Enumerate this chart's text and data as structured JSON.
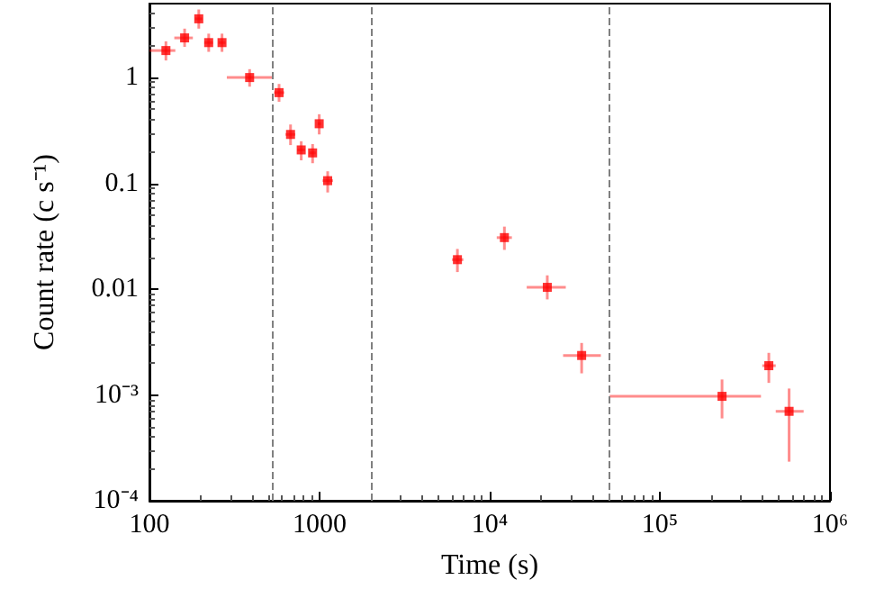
{
  "chart_data": {
    "type": "scatter",
    "xlabel": "Time (s)",
    "ylabel": "Count rate (c s⁻¹)",
    "log": "xy",
    "grid": false,
    "marker": "square",
    "xlim": [
      100,
      1000000
    ],
    "ylim": [
      0.0001,
      5
    ],
    "xticks": [
      100,
      1000,
      {
        "value": 10000,
        "label": "10⁴"
      },
      {
        "value": 100000,
        "label": "10⁵"
      },
      {
        "value": 1000000,
        "label": "10⁶"
      }
    ],
    "yticks": [
      {
        "value": 0.0001,
        "label": "10⁻⁴"
      },
      {
        "value": 0.001,
        "label": "10⁻³"
      },
      0.01,
      0.1,
      1
    ],
    "ref_lines": [
      {
        "axis": "x",
        "value": 530,
        "color": "#808080",
        "line_style": "dashed"
      },
      {
        "axis": "x",
        "value": 2000,
        "color": "#808080",
        "line_style": "dashed"
      },
      {
        "axis": "x",
        "value": 50000,
        "color": "#808080",
        "line_style": "dashed"
      }
    ],
    "series": [
      {
        "color": "#ff0000",
        "x": [
          125,
          161,
          195,
          223,
          267,
          388,
          578,
          675,
          780,
          910,
          995,
          1116,
          6460,
          12200,
          21800,
          34700,
          232000,
          437000,
          575000
        ],
        "values": [
          1.8,
          2.37,
          3.59,
          2.14,
          2.14,
          1.0,
          0.72,
          0.29,
          0.207,
          0.194,
          0.366,
          0.106,
          0.019,
          0.0307,
          0.0104,
          0.00236,
          0.00097,
          0.00189,
          0.0007
        ],
        "errors": [
          [
            1.45,
            2.2
          ],
          [
            1.95,
            2.9
          ],
          [
            2.9,
            4.4
          ],
          [
            1.75,
            2.6
          ],
          [
            1.75,
            2.6
          ],
          [
            0.82,
            1.2
          ],
          [
            0.59,
            0.87
          ],
          [
            0.23,
            0.36
          ],
          [
            0.165,
            0.25
          ],
          [
            0.155,
            0.235
          ],
          [
            0.29,
            0.45
          ],
          [
            0.082,
            0.13
          ],
          [
            0.0145,
            0.024
          ],
          [
            0.0235,
            0.039
          ],
          [
            0.008,
            0.0135
          ],
          [
            0.0016,
            0.0031
          ],
          [
            0.0006,
            0.0014
          ],
          [
            0.0013,
            0.0025
          ],
          [
            0.000234,
            0.00115
          ]
        ],
        "xerrors": [
          [
            100,
            142
          ],
          [
            140,
            180
          ],
          [
            185,
            205
          ],
          [
            210,
            236
          ],
          [
            255,
            280
          ],
          [
            285,
            533
          ],
          [
            540,
            620
          ],
          [
            630,
            720
          ],
          [
            740,
            820
          ],
          [
            870,
            950
          ],
          [
            975,
            1020
          ],
          [
            1040,
            1200
          ],
          [
            6000,
            7000
          ],
          [
            11000,
            13500
          ],
          [
            16500,
            28000
          ],
          [
            27000,
            45000
          ],
          [
            50700,
            393000
          ],
          [
            400000,
            480000
          ],
          [
            480000,
            700000
          ]
        ]
      }
    ]
  }
}
